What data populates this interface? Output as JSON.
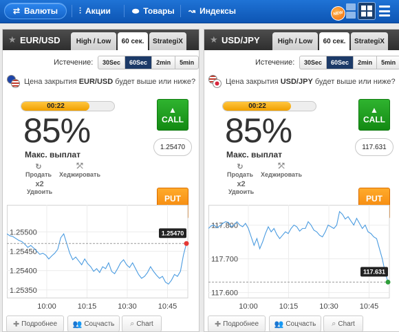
{
  "nav": {
    "items": [
      {
        "label": "Валюты",
        "icon": "currency-icon",
        "active": true
      },
      {
        "label": "Акции",
        "icon": "stocks-icon",
        "active": false
      },
      {
        "label": "Товары",
        "icon": "commodities-icon",
        "active": false
      },
      {
        "label": "Индексы",
        "icon": "indices-icon",
        "active": false
      }
    ],
    "new_badge": "NEW"
  },
  "panels": [
    {
      "pair": "EUR/USD",
      "tabs": [
        "High / Low",
        "60 сек.",
        "StrategiX"
      ],
      "active_tab": 1,
      "expiry_label": "Истечение:",
      "expiry_options": [
        "30Sec",
        "60Sec",
        "2min",
        "5min"
      ],
      "expiry_active": 1,
      "question_pre": "Цена закрытия ",
      "question_pair": "EUR/USD",
      "question_post": " будет выше или ниже?",
      "timer": "00:22",
      "timer_progress": 0.73,
      "payout": "85%",
      "payout_label": "Макс. выплат",
      "sell_label": "Продать",
      "hedge_label": "Хеджировать",
      "double_x": "x2",
      "double_label": "Удвоить",
      "call_label": "CALL",
      "put_label": "PUT",
      "strike": "1.25470",
      "chart_data": {
        "type": "line",
        "y_ticks": [
          "1.25500",
          "1.25450",
          "1.25400",
          "1.25350"
        ],
        "x_ticks": [
          "10:00",
          "10:15",
          "10:30",
          "10:45"
        ],
        "ylim": [
          1.2533,
          1.2557
        ],
        "current_value": "1.25470",
        "current_value_num": 1.2547,
        "marker_color": "#e53935",
        "line_color": "#4a9be0",
        "values": [
          1.25495,
          1.2549,
          1.25488,
          1.25483,
          1.25478,
          1.25475,
          1.25468,
          1.2546,
          1.25465,
          1.25458,
          1.2545,
          1.25442,
          1.25445,
          1.2544,
          1.2543,
          1.25438,
          1.25445,
          1.25455,
          1.25485,
          1.25495,
          1.2547,
          1.25445,
          1.25428,
          1.25435,
          1.25425,
          1.25415,
          1.2543,
          1.25418,
          1.2541,
          1.25398,
          1.25405,
          1.25395,
          1.2541,
          1.25405,
          1.2542,
          1.25398,
          1.25392,
          1.25405,
          1.2542,
          1.25428,
          1.25415,
          1.25408,
          1.2542,
          1.25405,
          1.2539,
          1.2538,
          1.25385,
          1.25395,
          1.2541,
          1.25398,
          1.25388,
          1.2538,
          1.25385,
          1.2537,
          1.25365,
          1.25375,
          1.2539,
          1.25385,
          1.25398,
          1.2544,
          1.2547
        ]
      },
      "more_label": "Подробнее",
      "social_label": "Соцчасть",
      "chart_label": "Chart"
    },
    {
      "pair": "USD/JPY",
      "tabs": [
        "High / Low",
        "60 сек.",
        "StrategiX"
      ],
      "active_tab": 1,
      "expiry_label": "Истечение:",
      "expiry_options": [
        "30Sec",
        "60Sec",
        "2min",
        "5min"
      ],
      "expiry_active": 1,
      "question_pre": "Цена закрытия ",
      "question_pair": "USD/JPY",
      "question_post": " будет выше или ниже?",
      "timer": "00:22",
      "timer_progress": 0.73,
      "payout": "85%",
      "payout_label": "Макс. выплат",
      "sell_label": "Продать",
      "hedge_label": "Хеджировать",
      "double_x": "x2",
      "double_label": "Удвоить",
      "call_label": "CALL",
      "put_label": "PUT",
      "strike": "117.631",
      "chart_data": {
        "type": "line",
        "y_ticks": [
          "117.800",
          "117.700",
          "117.600"
        ],
        "x_ticks": [
          "10:00",
          "10:15",
          "10:30",
          "10:45"
        ],
        "ylim": [
          117.585,
          117.86
        ],
        "current_value": "117.631",
        "current_value_num": 117.631,
        "marker_color": "#2e9e3a",
        "line_color": "#4a9be0",
        "values": [
          117.79,
          117.798,
          117.8,
          117.792,
          117.798,
          117.805,
          117.81,
          117.808,
          117.795,
          117.8,
          117.81,
          117.8,
          117.795,
          117.805,
          117.79,
          117.765,
          117.74,
          117.76,
          117.73,
          117.75,
          117.775,
          117.795,
          117.78,
          117.79,
          117.772,
          117.76,
          117.77,
          117.78,
          117.775,
          117.79,
          117.8,
          117.795,
          117.782,
          117.79,
          117.79,
          117.81,
          117.8,
          117.785,
          117.78,
          117.77,
          117.765,
          117.78,
          117.8,
          117.795,
          117.79,
          117.8,
          117.84,
          117.832,
          117.818,
          117.825,
          117.812,
          117.8,
          117.82,
          117.805,
          117.79,
          117.8,
          117.78,
          117.775,
          117.765,
          117.76,
          117.73,
          117.7,
          117.66,
          117.631
        ]
      },
      "more_label": "Подробнее",
      "social_label": "Соцчасть",
      "chart_label": "Chart"
    }
  ]
}
